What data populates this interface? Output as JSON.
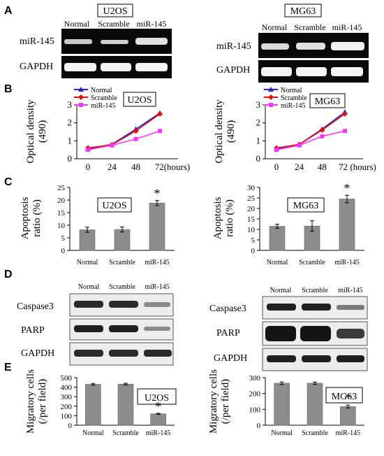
{
  "figure": {
    "panel_labels": [
      "A",
      "B",
      "C",
      "D",
      "E"
    ],
    "cell_lines": [
      "U2OS",
      "MG63"
    ],
    "groups": [
      "Normal",
      "Scramble",
      "miR-145"
    ]
  },
  "panel_a": {
    "label": "A",
    "blots": [
      {
        "cell_line": "U2OS",
        "rows": [
          "miR-145",
          "GAPDH"
        ],
        "lanes": [
          "Normal",
          "Scramble",
          "miR-145"
        ]
      },
      {
        "cell_line": "MG63",
        "rows": [
          "miR-145",
          "GAPDH"
        ],
        "lanes": [
          "Normal",
          "Scramble",
          "miR-145"
        ]
      }
    ]
  },
  "panel_d": {
    "label": "D",
    "blots": [
      {
        "cell_line": "U2OS",
        "rows": [
          "Caspase3",
          "PARP",
          "GAPDH"
        ],
        "lanes": [
          "Normal",
          "Scramble",
          "miR-145"
        ]
      },
      {
        "cell_line": "MG63",
        "rows": [
          "Caspase3",
          "PARP",
          "GAPDH"
        ],
        "lanes": [
          "Normal",
          "Scramble",
          "miR-145"
        ]
      }
    ]
  },
  "colors": {
    "normal": "#1f1fd0",
    "scramble": "#e01010",
    "mir145": "#ff33ff",
    "bar": "#8c8c8c",
    "blot_bg": "#0a0a0a",
    "band": "#f4f4f4"
  },
  "chart_data": [
    {
      "panel": "B",
      "cell_line": "U2OS",
      "type": "line",
      "title": "U2OS",
      "x": [
        0,
        24,
        48,
        72
      ],
      "x_tick_labels": [
        "0",
        "24",
        "48",
        "72(hours)"
      ],
      "ylabel": "Optical density (490)",
      "ylim": [
        0,
        3
      ],
      "yticks": [
        0,
        1,
        2,
        3
      ],
      "series": [
        {
          "name": "Normal",
          "values": [
            0.55,
            0.8,
            1.65,
            2.55
          ]
        },
        {
          "name": "Scramble",
          "values": [
            0.6,
            0.78,
            1.55,
            2.5
          ]
        },
        {
          "name": "miR-145",
          "values": [
            0.5,
            0.75,
            1.1,
            1.55
          ]
        }
      ]
    },
    {
      "panel": "B",
      "cell_line": "MG63",
      "type": "line",
      "title": "MG63",
      "x": [
        0,
        24,
        48,
        72
      ],
      "x_tick_labels": [
        "0",
        "24",
        "48",
        "72 (hours)"
      ],
      "ylabel": "Optical density (490)",
      "ylim": [
        0,
        3
      ],
      "yticks": [
        0,
        1,
        2,
        3
      ],
      "series": [
        {
          "name": "Normal",
          "values": [
            0.55,
            0.8,
            1.65,
            2.6
          ]
        },
        {
          "name": "Scramble",
          "values": [
            0.6,
            0.8,
            1.6,
            2.5
          ]
        },
        {
          "name": "miR-145",
          "values": [
            0.5,
            0.75,
            1.25,
            1.55
          ]
        }
      ]
    },
    {
      "panel": "C",
      "cell_line": "U2OS",
      "type": "bar",
      "title": "U2OS",
      "categories": [
        "Normal",
        "Scramble",
        "miR-145"
      ],
      "values": [
        8.2,
        8.3,
        18.8
      ],
      "errors": [
        1.0,
        1.0,
        1.0
      ],
      "significance": [
        "",
        "",
        "*"
      ],
      "ylabel": "Apoptosis ratio (%)",
      "ylim": [
        0,
        25
      ],
      "yticks": [
        0,
        5,
        10,
        15,
        20,
        25
      ]
    },
    {
      "panel": "C",
      "cell_line": "MG63",
      "type": "bar",
      "title": "MG63",
      "categories": [
        "Normal",
        "Scramble",
        "miR-145"
      ],
      "values": [
        11.5,
        11.6,
        24.5
      ],
      "errors": [
        1.0,
        2.5,
        1.8
      ],
      "significance": [
        "",
        "",
        "*"
      ],
      "ylabel": "Apoptosis ratio (%)",
      "ylim": [
        0,
        30
      ],
      "yticks": [
        0,
        5,
        10,
        15,
        20,
        25,
        30
      ]
    },
    {
      "panel": "E",
      "cell_line": "U2OS",
      "type": "bar",
      "title": "U2OS",
      "categories": [
        "Normal",
        "Scramble",
        "miR-145"
      ],
      "values": [
        430,
        432,
        120
      ],
      "errors": [
        9,
        9,
        5
      ],
      "significance": [
        "",
        "",
        "*"
      ],
      "ylabel": "Migratory cells (/per field)",
      "ylim": [
        0,
        500
      ],
      "yticks": [
        0,
        100,
        200,
        300,
        400,
        500
      ]
    },
    {
      "panel": "E",
      "cell_line": "MG63",
      "type": "bar",
      "title": "MG63",
      "categories": [
        "Normal",
        "Scramble",
        "miR-145"
      ],
      "values": [
        265,
        265,
        118
      ],
      "errors": [
        8,
        7,
        9
      ],
      "significance": [
        "",
        "",
        "*"
      ],
      "ylabel": "Migratory cells (/per field)",
      "ylim": [
        0,
        300
      ],
      "yticks": [
        0,
        100,
        200,
        300
      ]
    }
  ]
}
